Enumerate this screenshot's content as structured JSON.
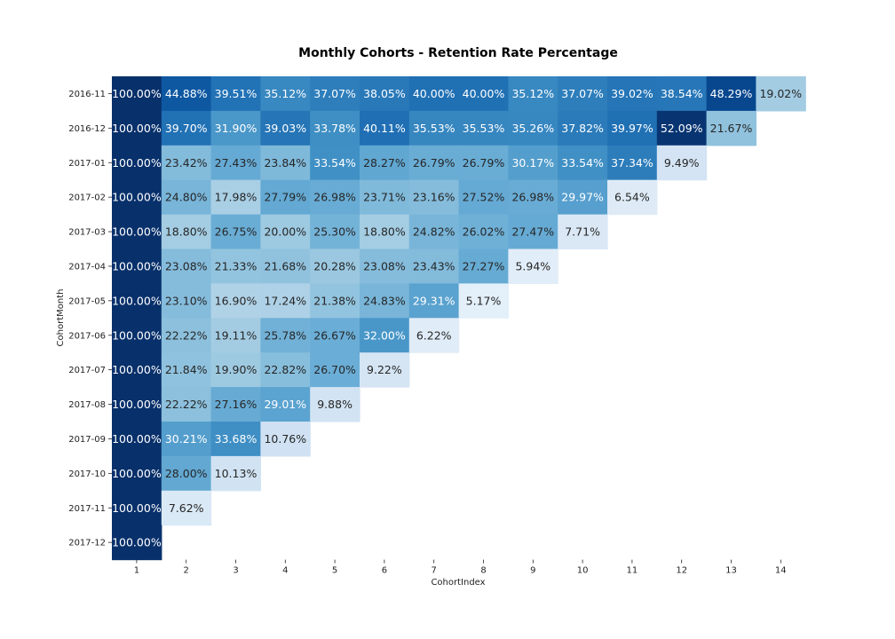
{
  "chart_data": {
    "type": "heatmap",
    "title": "Monthly Cohorts - Retention Rate Percentage",
    "xlabel": "CohortIndex",
    "ylabel": "CohortMonth",
    "x_categories": [
      "1",
      "2",
      "3",
      "4",
      "5",
      "6",
      "7",
      "8",
      "9",
      "10",
      "11",
      "12",
      "13",
      "14"
    ],
    "y_categories": [
      "2016-11",
      "2016-12",
      "2017-01",
      "2017-02",
      "2017-03",
      "2017-04",
      "2017-05",
      "2017-06",
      "2017-07",
      "2017-08",
      "2017-09",
      "2017-10",
      "2017-11",
      "2017-12"
    ],
    "value_format": "percent",
    "colormap": "Blues",
    "color_scale_max": 0.53,
    "values": [
      [
        100.0,
        44.88,
        39.51,
        35.12,
        37.07,
        38.05,
        40.0,
        40.0,
        35.12,
        37.07,
        39.02,
        38.54,
        48.29,
        19.02
      ],
      [
        100.0,
        39.7,
        31.9,
        39.03,
        33.78,
        40.11,
        35.53,
        35.53,
        35.26,
        37.82,
        39.97,
        52.09,
        21.67
      ],
      [
        100.0,
        23.42,
        27.43,
        23.84,
        33.54,
        28.27,
        26.79,
        26.79,
        30.17,
        33.54,
        37.34,
        9.49
      ],
      [
        100.0,
        24.8,
        17.98,
        27.79,
        26.98,
        23.71,
        23.16,
        27.52,
        26.98,
        29.97,
        6.54
      ],
      [
        100.0,
        18.8,
        26.75,
        20.0,
        25.3,
        18.8,
        24.82,
        26.02,
        27.47,
        7.71
      ],
      [
        100.0,
        23.08,
        21.33,
        21.68,
        20.28,
        23.08,
        23.43,
        27.27,
        5.94
      ],
      [
        100.0,
        23.1,
        16.9,
        17.24,
        21.38,
        24.83,
        29.31,
        5.17
      ],
      [
        100.0,
        22.22,
        19.11,
        25.78,
        26.67,
        32.0,
        6.22
      ],
      [
        100.0,
        21.84,
        19.9,
        22.82,
        26.7,
        9.22
      ],
      [
        100.0,
        22.22,
        27.16,
        29.01,
        9.88
      ],
      [
        100.0,
        30.21,
        33.68,
        10.76
      ],
      [
        100.0,
        28.0,
        10.13
      ],
      [
        100.0,
        7.62
      ],
      [
        100.0
      ]
    ],
    "grid": false,
    "legend": "none"
  }
}
